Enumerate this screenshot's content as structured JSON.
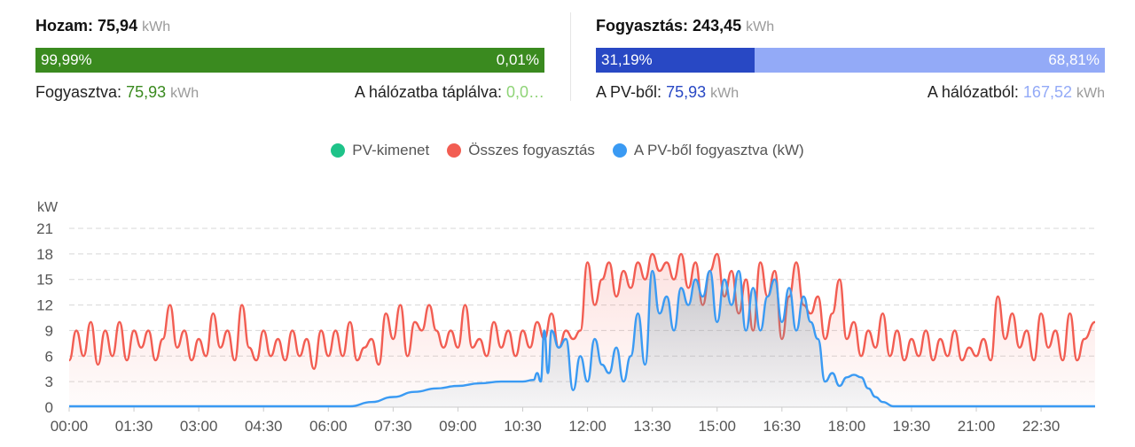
{
  "yield": {
    "label": "Hozam:",
    "value": "75,94",
    "unit": "kWh",
    "bar": {
      "left_text": "99,99%",
      "right_text": "0,01%",
      "left_fraction": 0.9999,
      "left_color": "#3a8a1f",
      "right_color": "#3a8a1f"
    },
    "consumed_label": "Fogyasztva:",
    "consumed_value": "75,93",
    "consumed_unit": "kWh",
    "grid_label": "A hálózatba táplálva:",
    "grid_value": "0,0…",
    "value_color": "#3a8a1f",
    "grid_value_color": "#8fd477"
  },
  "consumption": {
    "label": "Fogyasztás:",
    "value": "243,45",
    "unit": "kWh",
    "bar": {
      "left_text": "31,19%",
      "right_text": "68,81%",
      "left_fraction": 0.3119,
      "left_color": "#2848c4",
      "right_color": "#93aaf7"
    },
    "pv_label": "A PV-ből:",
    "pv_value": "75,93",
    "pv_unit": "kWh",
    "grid_label": "A hálózatból:",
    "grid_value": "167,52",
    "grid_unit": "kWh",
    "pv_value_color": "#2848c4",
    "grid_value_color": "#93aaf7"
  },
  "legend": [
    {
      "label": "PV-kimenet",
      "color": "#1ec389"
    },
    {
      "label": "Összes fogyasztás",
      "color": "#f25d52"
    },
    {
      "label": "A PV-ből fogyasztva (kW)",
      "color": "#3a9af3"
    }
  ],
  "chart_data": {
    "type": "area",
    "ylabel": "kW",
    "ylim": [
      0,
      21
    ],
    "yticks": [
      "0",
      "3",
      "6",
      "9",
      "12",
      "15",
      "18",
      "21"
    ],
    "xticks": [
      "00:00",
      "01:30",
      "03:00",
      "04:30",
      "06:00",
      "07:30",
      "09:00",
      "10:30",
      "12:00",
      "13:30",
      "15:00",
      "16:30",
      "18:00",
      "19:30",
      "21:00",
      "22:30"
    ],
    "x_minutes_end": 1425,
    "grid": true,
    "series": [
      {
        "name": "Összes fogyasztás",
        "color": "#f25d52",
        "fill": "rgba(242,93,82,0.08)",
        "points": [
          [
            0,
            5.5
          ],
          [
            10,
            9
          ],
          [
            20,
            6
          ],
          [
            30,
            10
          ],
          [
            40,
            5
          ],
          [
            50,
            9
          ],
          [
            60,
            6
          ],
          [
            70,
            10
          ],
          [
            80,
            5.5
          ],
          [
            90,
            9
          ],
          [
            100,
            7
          ],
          [
            110,
            9
          ],
          [
            120,
            5.5
          ],
          [
            130,
            8
          ],
          [
            140,
            12
          ],
          [
            150,
            7
          ],
          [
            160,
            9
          ],
          [
            170,
            5.5
          ],
          [
            180,
            8
          ],
          [
            190,
            6
          ],
          [
            200,
            11
          ],
          [
            210,
            7
          ],
          [
            220,
            9
          ],
          [
            230,
            5.5
          ],
          [
            240,
            12
          ],
          [
            250,
            7
          ],
          [
            260,
            5.5
          ],
          [
            270,
            9
          ],
          [
            280,
            6
          ],
          [
            290,
            8
          ],
          [
            300,
            5.5
          ],
          [
            310,
            9
          ],
          [
            320,
            6
          ],
          [
            330,
            8
          ],
          [
            340,
            4.5
          ],
          [
            350,
            9
          ],
          [
            360,
            6
          ],
          [
            370,
            9
          ],
          [
            380,
            6
          ],
          [
            390,
            10
          ],
          [
            400,
            5.5
          ],
          [
            410,
            7
          ],
          [
            420,
            8
          ],
          [
            430,
            5
          ],
          [
            440,
            11
          ],
          [
            450,
            8
          ],
          [
            460,
            12
          ],
          [
            470,
            6
          ],
          [
            480,
            10
          ],
          [
            490,
            9
          ],
          [
            500,
            12
          ],
          [
            510,
            9
          ],
          [
            520,
            7
          ],
          [
            530,
            9
          ],
          [
            540,
            7
          ],
          [
            550,
            12
          ],
          [
            560,
            7
          ],
          [
            570,
            8
          ],
          [
            580,
            6
          ],
          [
            590,
            10
          ],
          [
            600,
            7
          ],
          [
            610,
            9
          ],
          [
            620,
            6
          ],
          [
            630,
            9
          ],
          [
            640,
            7
          ],
          [
            650,
            10
          ],
          [
            660,
            8
          ],
          [
            670,
            11
          ],
          [
            680,
            7
          ],
          [
            690,
            9
          ],
          [
            700,
            8
          ],
          [
            710,
            9
          ],
          [
            720,
            17
          ],
          [
            730,
            12
          ],
          [
            740,
            15
          ],
          [
            750,
            17
          ],
          [
            760,
            13
          ],
          [
            770,
            16
          ],
          [
            780,
            14
          ],
          [
            790,
            17
          ],
          [
            800,
            15
          ],
          [
            810,
            18
          ],
          [
            820,
            16
          ],
          [
            830,
            17
          ],
          [
            840,
            15
          ],
          [
            850,
            18
          ],
          [
            860,
            14
          ],
          [
            870,
            17
          ],
          [
            880,
            12
          ],
          [
            890,
            16
          ],
          [
            900,
            18
          ],
          [
            910,
            13
          ],
          [
            920,
            16
          ],
          [
            930,
            11
          ],
          [
            940,
            15
          ],
          [
            950,
            9
          ],
          [
            960,
            17
          ],
          [
            970,
            13
          ],
          [
            980,
            16
          ],
          [
            990,
            8
          ],
          [
            1000,
            13
          ],
          [
            1010,
            17
          ],
          [
            1020,
            12
          ],
          [
            1030,
            11
          ],
          [
            1040,
            13
          ],
          [
            1050,
            8
          ],
          [
            1060,
            11
          ],
          [
            1070,
            15
          ],
          [
            1080,
            8
          ],
          [
            1090,
            10
          ],
          [
            1100,
            6
          ],
          [
            1110,
            9
          ],
          [
            1120,
            7
          ],
          [
            1130,
            11
          ],
          [
            1140,
            6
          ],
          [
            1150,
            9
          ],
          [
            1160,
            5.5
          ],
          [
            1170,
            8
          ],
          [
            1180,
            6
          ],
          [
            1190,
            9
          ],
          [
            1200,
            5.5
          ],
          [
            1210,
            8
          ],
          [
            1220,
            6
          ],
          [
            1230,
            9
          ],
          [
            1240,
            5.5
          ],
          [
            1250,
            7
          ],
          [
            1260,
            6
          ],
          [
            1270,
            8
          ],
          [
            1280,
            5.5
          ],
          [
            1290,
            13
          ],
          [
            1300,
            8
          ],
          [
            1310,
            11
          ],
          [
            1320,
            7
          ],
          [
            1330,
            9
          ],
          [
            1340,
            5.5
          ],
          [
            1350,
            11
          ],
          [
            1360,
            7
          ],
          [
            1370,
            9
          ],
          [
            1380,
            5.5
          ],
          [
            1390,
            11
          ],
          [
            1400,
            5.5
          ],
          [
            1410,
            8
          ],
          [
            1425,
            10
          ]
        ]
      },
      {
        "name": "A PV-ből fogyasztva (kW)",
        "color": "#3a9af3",
        "fill": "rgba(80,140,160,0.12)",
        "points": [
          [
            0,
            0.1
          ],
          [
            390,
            0.1
          ],
          [
            420,
            0.6
          ],
          [
            450,
            1.2
          ],
          [
            480,
            1.8
          ],
          [
            510,
            2.2
          ],
          [
            540,
            2.5
          ],
          [
            570,
            2.8
          ],
          [
            600,
            3.0
          ],
          [
            630,
            3.0
          ],
          [
            645,
            3.2
          ],
          [
            650,
            4
          ],
          [
            655,
            3
          ],
          [
            660,
            9
          ],
          [
            665,
            4
          ],
          [
            670,
            9
          ],
          [
            680,
            7
          ],
          [
            690,
            8
          ],
          [
            700,
            2
          ],
          [
            710,
            6
          ],
          [
            720,
            3
          ],
          [
            730,
            8
          ],
          [
            740,
            5
          ],
          [
            750,
            4
          ],
          [
            760,
            7
          ],
          [
            770,
            3
          ],
          [
            780,
            6
          ],
          [
            790,
            11
          ],
          [
            800,
            5
          ],
          [
            810,
            16
          ],
          [
            820,
            11
          ],
          [
            830,
            13
          ],
          [
            840,
            9
          ],
          [
            850,
            14
          ],
          [
            860,
            12
          ],
          [
            870,
            15
          ],
          [
            880,
            13
          ],
          [
            890,
            16
          ],
          [
            900,
            10
          ],
          [
            910,
            15
          ],
          [
            920,
            12
          ],
          [
            930,
            16
          ],
          [
            940,
            9
          ],
          [
            950,
            14
          ],
          [
            960,
            9
          ],
          [
            970,
            13
          ],
          [
            980,
            15
          ],
          [
            990,
            10
          ],
          [
            1000,
            14
          ],
          [
            1010,
            9
          ],
          [
            1020,
            13
          ],
          [
            1030,
            10
          ],
          [
            1040,
            8
          ],
          [
            1050,
            3
          ],
          [
            1060,
            4
          ],
          [
            1070,
            2.5
          ],
          [
            1080,
            3.5
          ],
          [
            1090,
            3.8
          ],
          [
            1100,
            3.5
          ],
          [
            1110,
            2.2
          ],
          [
            1120,
            1.2
          ],
          [
            1130,
            0.6
          ],
          [
            1145,
            0.1
          ],
          [
            1425,
            0.1
          ]
        ]
      }
    ]
  }
}
